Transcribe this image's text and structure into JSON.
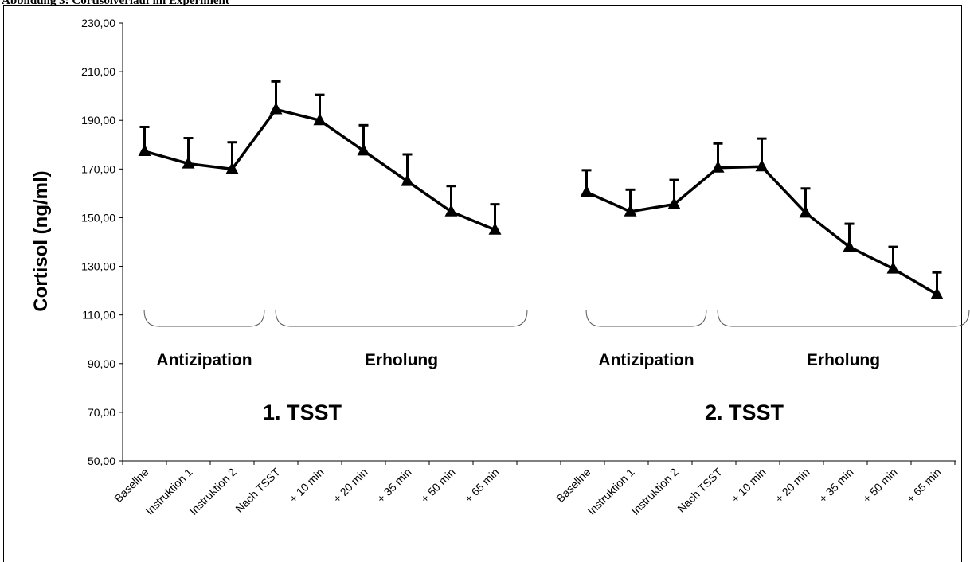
{
  "page_title": "Abbildung 3: Cortisolverlauf im Experiment",
  "chart_data": {
    "type": "line",
    "title": "",
    "ylabel": "Cortisol (ng/ml)",
    "xlabel": "",
    "ylim": [
      50,
      230
    ],
    "y_ticks": [
      "50,00",
      "70,00",
      "90,00",
      "110,00",
      "130,00",
      "150,00",
      "170,00",
      "190,00",
      "210,00",
      "230,00"
    ],
    "grid": false,
    "groups": [
      {
        "label": "1. TSST",
        "phases": [
          {
            "label": "Antizipation",
            "from": 0,
            "to": 2
          },
          {
            "label": "Erholung",
            "from": 3,
            "to": 8
          }
        ],
        "categories": [
          "Baseline",
          "Instruktion 1",
          "Instruktion 2",
          "Nach TSST",
          "+ 10 min",
          "+ 20 min",
          "+ 35 min",
          "+ 50 min",
          "+ 65 min"
        ],
        "values": [
          177.3,
          172.2,
          170.0,
          194.5,
          190.0,
          177.5,
          165.0,
          152.5,
          145.0
        ],
        "errors": [
          10.0,
          10.5,
          11.0,
          11.5,
          10.5,
          10.5,
          11.0,
          10.5,
          10.5
        ]
      },
      {
        "label": "2. TSST",
        "phases": [
          {
            "label": "Antizipation",
            "from": 0,
            "to": 2
          },
          {
            "label": "Erholung",
            "from": 3,
            "to": 8
          }
        ],
        "categories": [
          "Baseline",
          "Instruktion 1",
          "Instruktion 2",
          "Nach TSST",
          "+ 10 min",
          "+ 20 min",
          "+ 35 min",
          "+ 50 min",
          "+ 65 min"
        ],
        "values": [
          160.5,
          152.5,
          155.5,
          170.5,
          171.0,
          152.0,
          138.0,
          129.0,
          118.5
        ],
        "errors": [
          9.0,
          9.0,
          10.0,
          10.0,
          11.5,
          10.0,
          9.5,
          9.0,
          9.0
        ]
      }
    ]
  }
}
